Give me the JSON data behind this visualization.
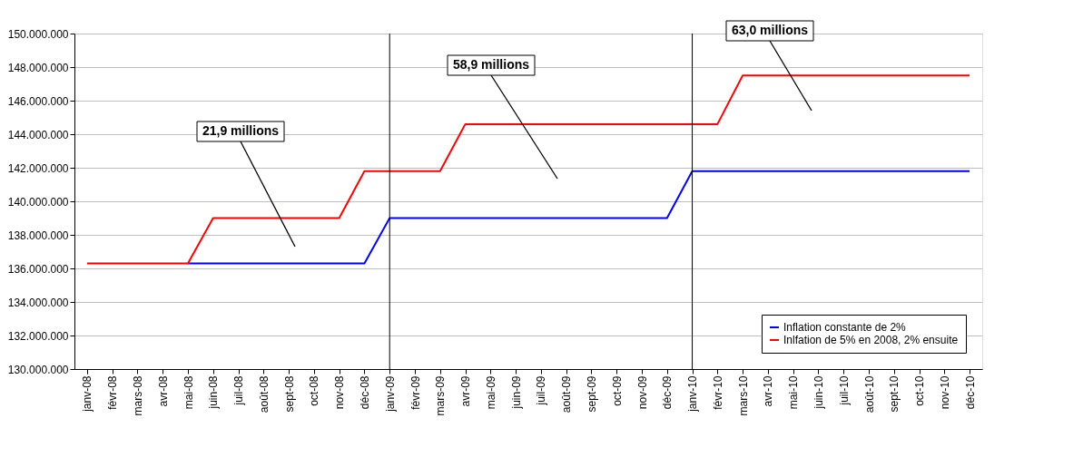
{
  "chart_data": {
    "type": "line",
    "categories": [
      "janv-08",
      "févr-08",
      "mars-08",
      "avr-08",
      "mai-08",
      "juin-08",
      "juil-08",
      "août-08",
      "sept-08",
      "oct-08",
      "nov-08",
      "déc-08",
      "janv-09",
      "févr-09",
      "mars-09",
      "avr-09",
      "mai-09",
      "juin-09",
      "juil-09",
      "août-09",
      "sept-09",
      "oct-09",
      "nov-09",
      "déc-09",
      "janv-10",
      "févr-10",
      "mars-10",
      "avr-10",
      "mai-10",
      "juin-10",
      "juil-10",
      "août-10",
      "sept-10",
      "oct-10",
      "nov-10",
      "déc-10"
    ],
    "series": [
      {
        "name": "Inflation constante de 2%",
        "color": "#0000ff",
        "values": [
          null,
          null,
          null,
          null,
          136300000,
          136300000,
          136300000,
          136300000,
          136300000,
          136300000,
          136300000,
          136300000,
          139000000,
          139000000,
          139000000,
          139000000,
          139000000,
          139000000,
          139000000,
          139000000,
          139000000,
          139000000,
          139000000,
          139000000,
          141800000,
          141800000,
          141800000,
          141800000,
          141800000,
          141800000,
          141800000,
          141800000,
          141800000,
          141800000,
          141800000,
          141800000
        ]
      },
      {
        "name": "Inlfation de 5% en 2008, 2% ensuite",
        "color": "#ff0000",
        "values": [
          136300000,
          136300000,
          136300000,
          136300000,
          136300000,
          139000000,
          139000000,
          139000000,
          139000000,
          139000000,
          139000000,
          141800000,
          141800000,
          141800000,
          141800000,
          144600000,
          144600000,
          144600000,
          144600000,
          144600000,
          144600000,
          144600000,
          144600000,
          144600000,
          144600000,
          144600000,
          147500000,
          147500000,
          147500000,
          147500000,
          147500000,
          147500000,
          147500000,
          147500000,
          147500000,
          147500000
        ]
      }
    ],
    "ylim": [
      130000000,
      150000000
    ],
    "yticks": [
      {
        "value": 130000000,
        "label": "130.000.000"
      },
      {
        "value": 132000000,
        "label": "132.000.000"
      },
      {
        "value": 134000000,
        "label": "134.000.000"
      },
      {
        "value": 136000000,
        "label": "136.000.000"
      },
      {
        "value": 138000000,
        "label": "138.000.000"
      },
      {
        "value": 140000000,
        "label": "140.000.000"
      },
      {
        "value": 142000000,
        "label": "142.000.000"
      },
      {
        "value": 144000000,
        "label": "144.000.000"
      },
      {
        "value": 146000000,
        "label": "146.000.000"
      },
      {
        "value": 148000000,
        "label": "148.000.000"
      },
      {
        "value": 150000000,
        "label": "150.000.000"
      }
    ],
    "ref_lines": [
      {
        "axis": "x",
        "value": "janv-09",
        "color": "#000000"
      },
      {
        "axis": "x",
        "value": "janv-10",
        "color": "#000000"
      }
    ],
    "annotations": [
      "21,9 millions",
      "58,9 millions",
      "63,0 millions"
    ],
    "grid": "y",
    "legend": "bottom right",
    "marker": "none",
    "line_style": "solid"
  }
}
